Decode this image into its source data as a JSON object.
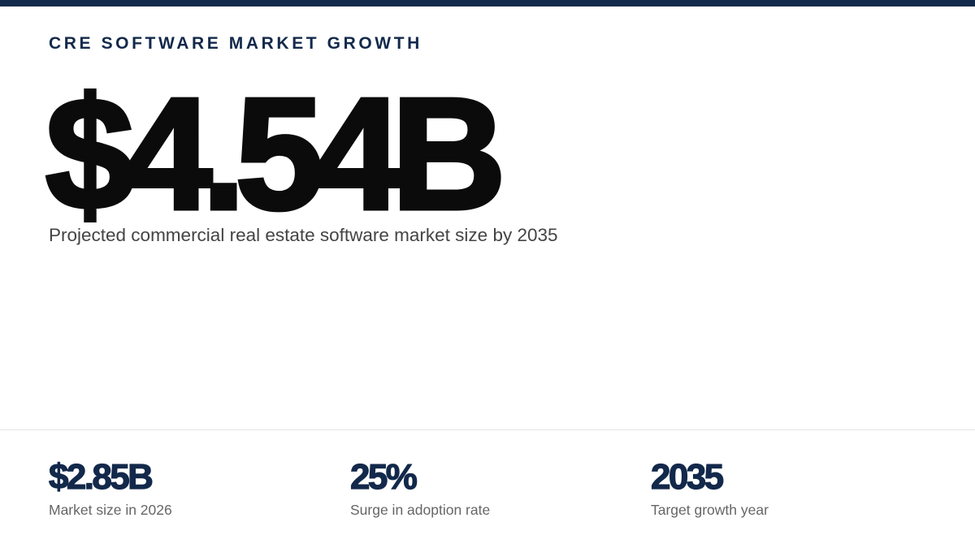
{
  "header": {
    "eyebrow": "CRE SOFTWARE MARKET GROWTH",
    "accent_color": "#13294b"
  },
  "hero": {
    "value": "$4.54B",
    "caption": "Projected commercial real estate software market size by 2035"
  },
  "stats": [
    {
      "value": "$2.85B",
      "label": "Market size in 2026"
    },
    {
      "value": "25%",
      "label": "Surge in adoption rate"
    },
    {
      "value": "2035",
      "label": "Target growth year"
    }
  ]
}
